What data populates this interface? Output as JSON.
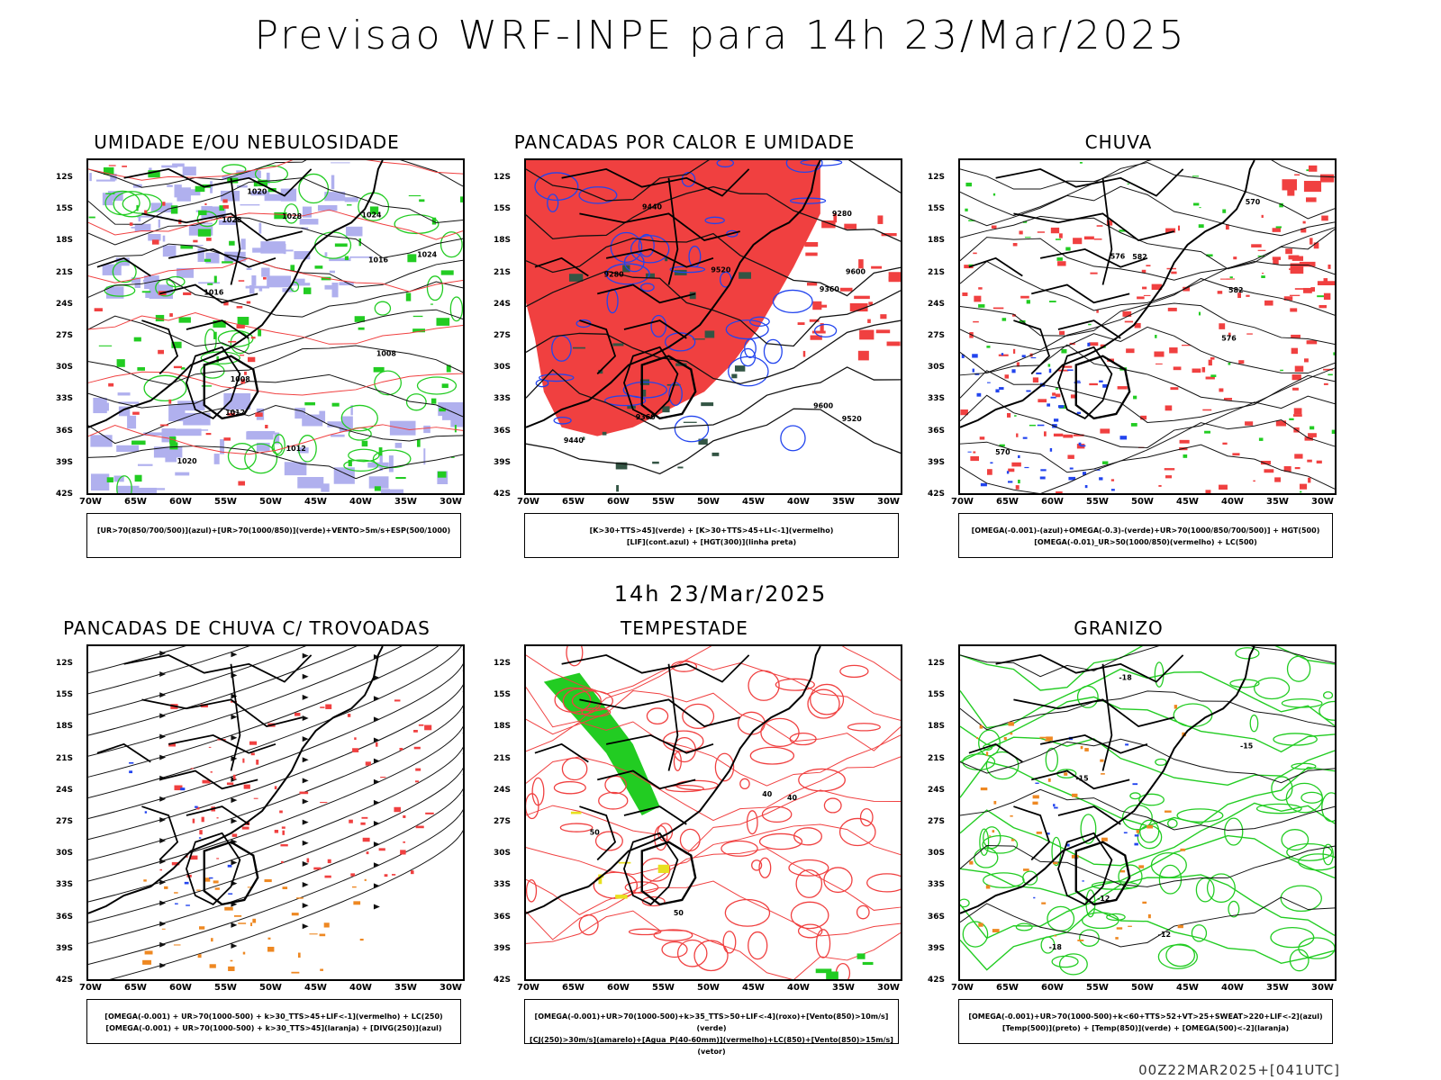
{
  "title": "Previsao WRF-INPE  para 14h 23/Mar/2025",
  "subtitle": "14h 23/Mar/2025",
  "footer": "00Z22MAR2025+[041UTC]",
  "lat_labels": [
    "12S",
    "15S",
    "18S",
    "21S",
    "24S",
    "27S",
    "30S",
    "33S",
    "36S",
    "39S",
    "42S"
  ],
  "lon_labels": [
    "70W",
    "65W",
    "60W",
    "55W",
    "50W",
    "45W",
    "40W",
    "35W",
    "30W"
  ],
  "colors": {
    "red": "#f04040",
    "green": "#22cc22",
    "blue": "#2244ee",
    "lavender": "#b0b0ee",
    "orange": "#ee8822",
    "darkteal": "#335544",
    "yellow": "#e8e020"
  },
  "panels": [
    {
      "id": "umidade",
      "title": "UMIDADE E/OU NEBULOSIDADE",
      "legend": [
        "[UR>70(850/700/500)](azul)+[UR>70(1000/850)](verde)+VENTO>5m/s+ESP(500/1000)"
      ],
      "contour_labels": [
        "1012",
        "1016",
        "1020",
        "1008",
        "1024",
        "1028"
      ]
    },
    {
      "id": "pancadas_calor",
      "title": "PANCADAS POR CALOR E UMIDADE",
      "legend": [
        "[K>30+TTS>45](verde) + [K>30+TTS>45+LI<-1](vermelho)",
        "[LIF](cont.azul) + [HGT(300)](linha preta)"
      ],
      "contour_labels": [
        "9600",
        "9520",
        "9440",
        "9360",
        "9280"
      ]
    },
    {
      "id": "chuva",
      "title": "CHUVA",
      "legend": [
        "[OMEGA(-0.001)-(azul)+OMEGA(-0.3)-(verde)+UR>70(1000/850/700/500)] + HGT(500)",
        "[OMEGA(-0.01)_UR>50(1000/850)(vermelho) + LC(500)"
      ],
      "contour_labels": [
        "582",
        "576",
        "570"
      ]
    },
    {
      "id": "trovoadas",
      "title": "PANCADAS DE CHUVA C/ TROVOADAS",
      "legend": [
        "[OMEGA(-0.001) + UR>70(1000-500) + k>30_TTS>45+LIF<-1](vermelho) + LC(250)",
        "[OMEGA(-0.001) + UR>70(1000-500) + k>30_TTS>45](laranja) + [DIVG(250)](azul)"
      ],
      "contour_labels": []
    },
    {
      "id": "tempestade",
      "title": "TEMPESTADE",
      "legend": [
        "[OMEGA(-0.001)+UR>70(1000-500)+k>35_TTS>50+LIF<-4](roxo)+[Vento(850)>10m/s](verde)",
        "[CJ(250)>30m/s](amarelo)+[Agua_P(40-60mm)](vermelho)+LC(850)+[Vento(850)>15m/s](vetor)"
      ],
      "contour_labels": [
        "40",
        "50"
      ]
    },
    {
      "id": "granizo",
      "title": "GRANIZO",
      "legend": [
        "[OMEGA(-0.001)+UR>70(1000-500)+k<60+TTS>52+VT>25+SWEAT>220+LIF<-2](azul)",
        "[Temp(500)](preto) + [Temp(850)](verde) + [OMEGA(500)<-2](laranja)"
      ],
      "contour_labels": [
        "-12",
        "-15",
        "-18"
      ]
    }
  ]
}
